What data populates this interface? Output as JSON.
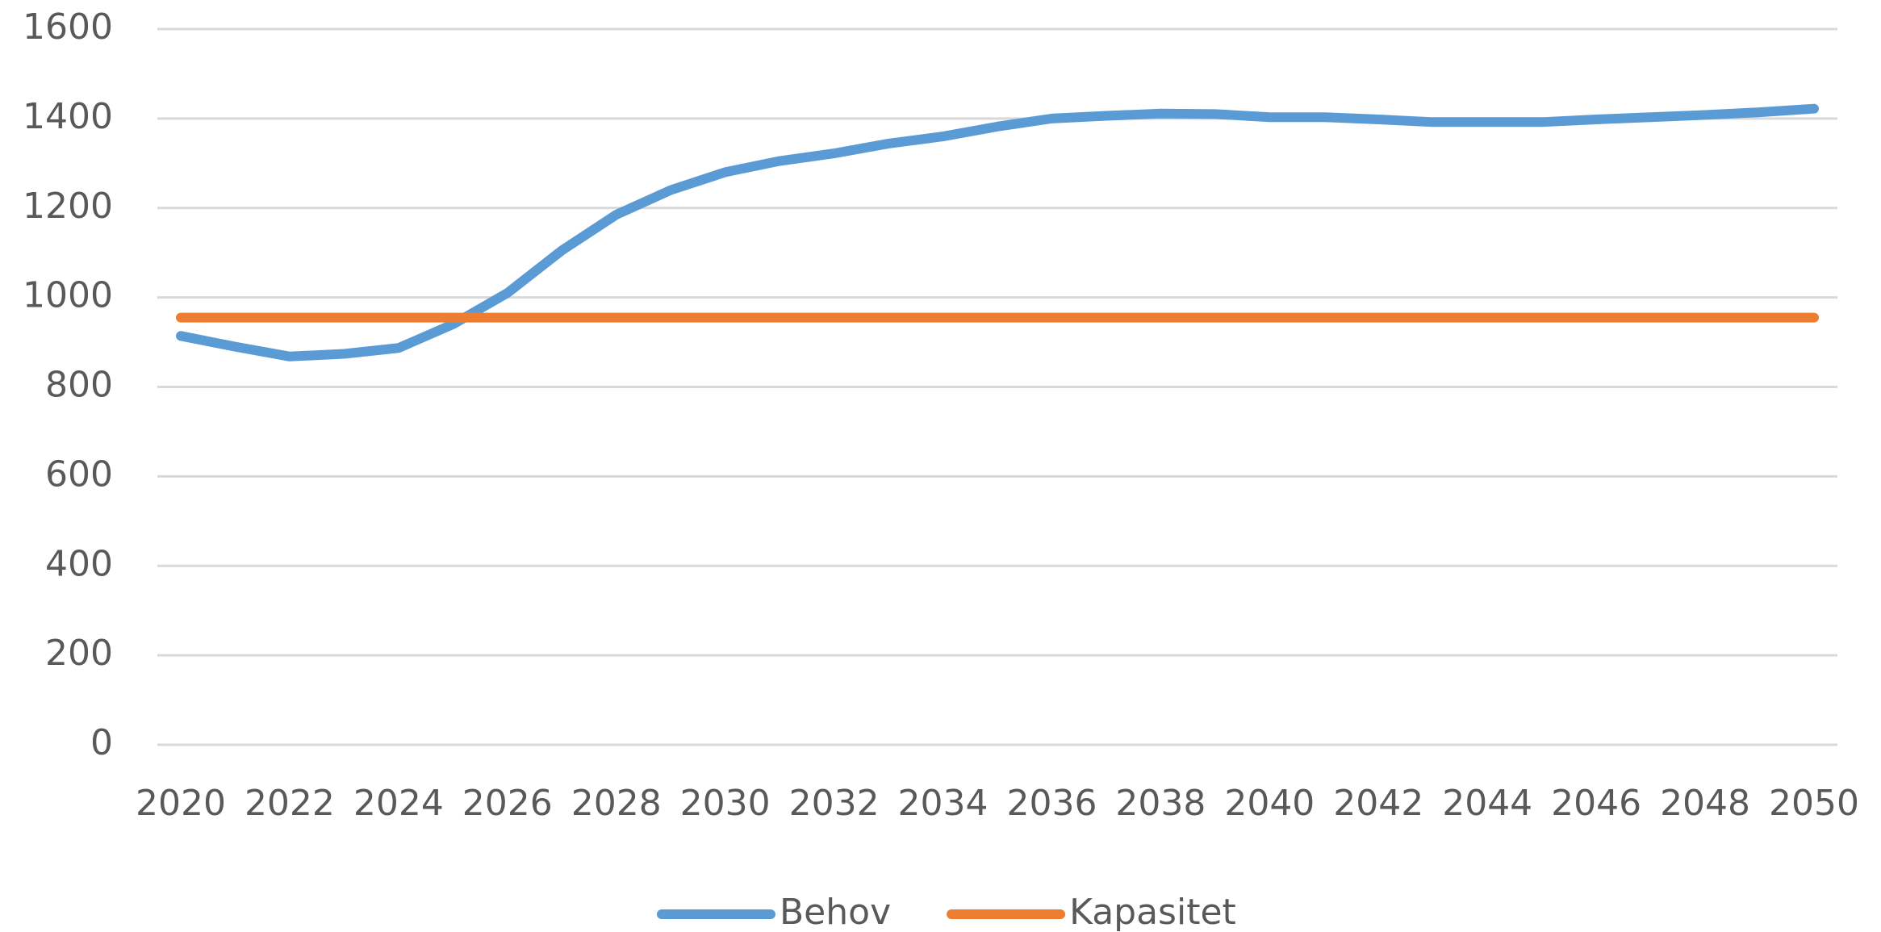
{
  "chart_data": {
    "type": "line",
    "x": [
      2020,
      2021,
      2022,
      2023,
      2024,
      2025,
      2026,
      2027,
      2028,
      2029,
      2030,
      2031,
      2032,
      2033,
      2034,
      2035,
      2036,
      2037,
      2038,
      2039,
      2040,
      2041,
      2042,
      2043,
      2044,
      2045,
      2046,
      2047,
      2048,
      2049,
      2050
    ],
    "series": [
      {
        "name": "Behov",
        "color": "#5b9bd5",
        "values": [
          914,
          890,
          868,
          874,
          887,
          940,
          1010,
          1105,
          1185,
          1240,
          1280,
          1305,
          1322,
          1344,
          1360,
          1382,
          1400,
          1406,
          1411,
          1410,
          1403,
          1403,
          1398,
          1392,
          1392,
          1392,
          1398,
          1403,
          1408,
          1414,
          1422
        ]
      },
      {
        "name": "Kapasitet",
        "color": "#ed7d31",
        "values": [
          955,
          955,
          955,
          955,
          955,
          955,
          955,
          955,
          955,
          955,
          955,
          955,
          955,
          955,
          955,
          955,
          955,
          955,
          955,
          955,
          955,
          955,
          955,
          955,
          955,
          955,
          955,
          955,
          955,
          955,
          955
        ]
      }
    ],
    "xlim": [
      2020,
      2050
    ],
    "xticks": [
      2020,
      2022,
      2024,
      2026,
      2028,
      2030,
      2032,
      2034,
      2036,
      2038,
      2040,
      2042,
      2044,
      2046,
      2048,
      2050
    ],
    "ylim": [
      0,
      1600
    ],
    "yticks": [
      0,
      200,
      400,
      600,
      800,
      1000,
      1200,
      1400,
      1600
    ],
    "grid": true,
    "legend": "bottom"
  }
}
